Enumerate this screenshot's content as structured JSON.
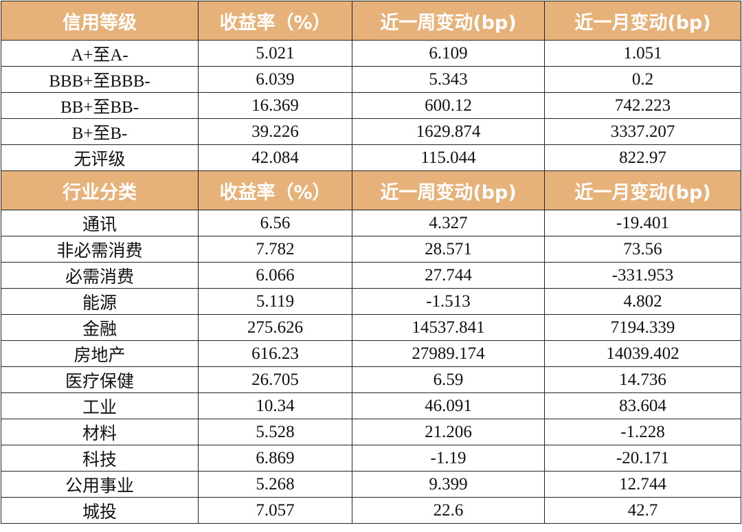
{
  "credit_section": {
    "headers": [
      "信用等级",
      "收益率（%）",
      "近一周变动(bp)",
      "近一月变动(bp)"
    ],
    "rows": [
      [
        "A+至A-",
        "5.021",
        "6.109",
        "1.051"
      ],
      [
        "BBB+至BBB-",
        "6.039",
        "5.343",
        "0.2"
      ],
      [
        "BB+至BB-",
        "16.369",
        "600.12",
        "742.223"
      ],
      [
        "B+至B-",
        "39.226",
        "1629.874",
        "3337.207"
      ],
      [
        "无评级",
        "42.084",
        "115.044",
        "822.97"
      ]
    ]
  },
  "industry_section": {
    "headers": [
      "行业分类",
      "收益率（%）",
      "近一周变动(bp)",
      "近一月变动(bp)"
    ],
    "rows": [
      [
        "通讯",
        "6.56",
        "4.327",
        "-19.401"
      ],
      [
        "非必需消费",
        "7.782",
        "28.571",
        "73.56"
      ],
      [
        "必需消费",
        "6.066",
        "27.744",
        "-331.953"
      ],
      [
        "能源",
        "5.119",
        "-1.513",
        "4.802"
      ],
      [
        "金融",
        "275.626",
        "14537.841",
        "7194.339"
      ],
      [
        "房地产",
        "616.23",
        "27989.174",
        "14039.402"
      ],
      [
        "医疗保健",
        "26.705",
        "6.59",
        "14.736"
      ],
      [
        "工业",
        "10.34",
        "46.091",
        "83.604"
      ],
      [
        "材料",
        "5.528",
        "21.206",
        "-1.228"
      ],
      [
        "科技",
        "6.869",
        "-1.19",
        "-20.171"
      ],
      [
        "公用事业",
        "5.268",
        "9.399",
        "12.744"
      ],
      [
        "城投",
        "7.057",
        "22.6",
        "42.7"
      ]
    ]
  },
  "colors": {
    "header_background": "#e7b27a",
    "header_text": "#ffffff",
    "border": "#222222"
  }
}
